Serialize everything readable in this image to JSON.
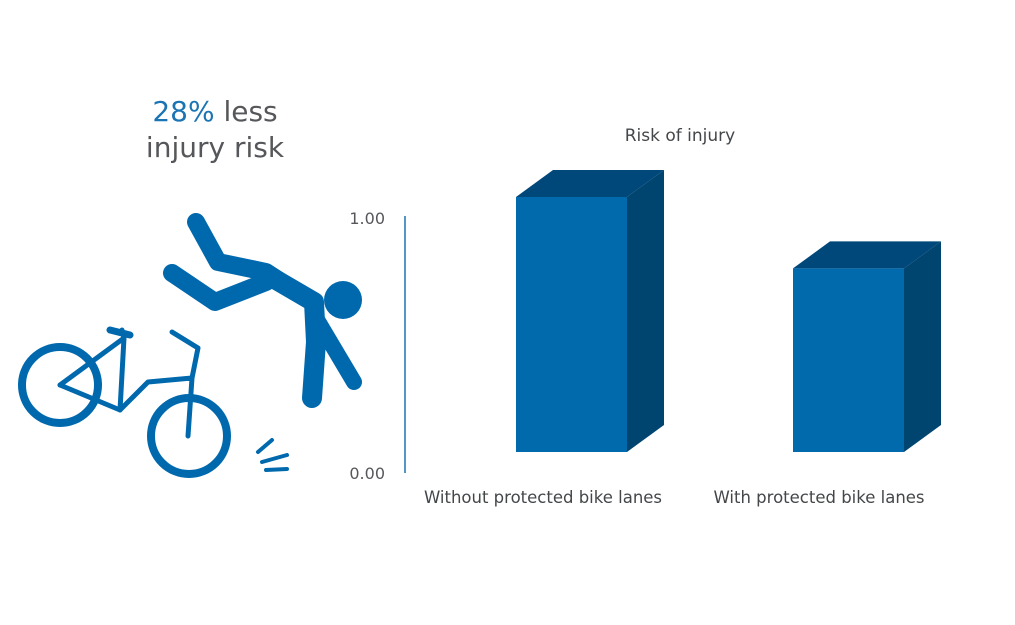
{
  "headline": {
    "accent": "28%",
    "line1_rest": " less",
    "line2": "injury risk"
  },
  "illustration": {
    "icon": "cyclist-falling-icon",
    "color": "#0069ad"
  },
  "colors": {
    "bar_front": "#006aac",
    "bar_side": "#004470",
    "bar_top": "#00487a",
    "axis": "#1b74b3"
  },
  "chart_data": {
    "type": "bar",
    "title": "Risk of injury",
    "categories": [
      "Without protected bike lanes",
      "With protected bike lanes"
    ],
    "values": [
      1.0,
      0.72
    ],
    "ylim": [
      0,
      1
    ],
    "y_ticks": [
      "0.00",
      "1.00"
    ],
    "xlabel": "",
    "ylabel": "",
    "grid": false,
    "style": "3d-bar"
  }
}
